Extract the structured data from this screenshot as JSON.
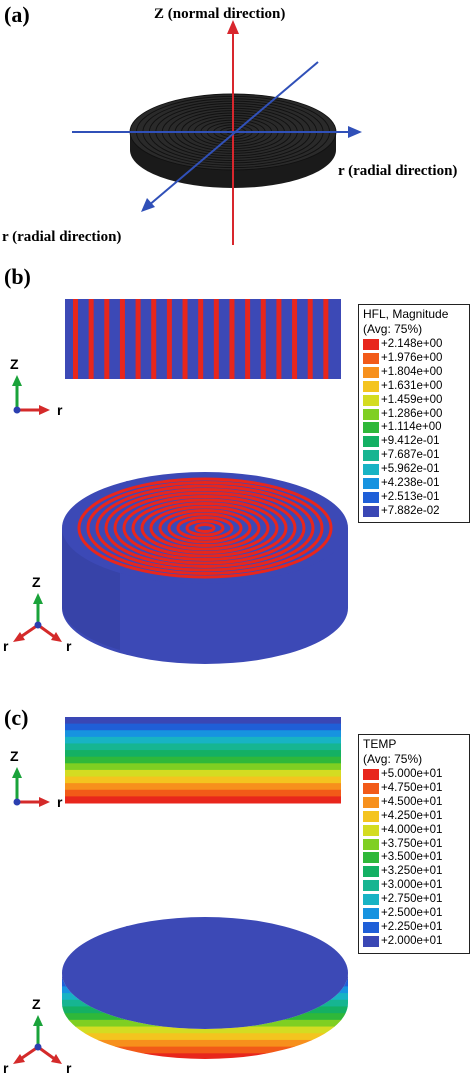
{
  "panel_a": {
    "label": "(a)",
    "axis_z": "Z (normal direction)",
    "axis_r_right": "r (radial direction)",
    "axis_r_left": "r (radial direction)"
  },
  "panel_b": {
    "label": "(b)",
    "legend_title": "HFL, Magnitude",
    "legend_subtitle": "(Avg: 75%)",
    "legend_values": [
      "+2.148e+00",
      "+1.976e+00",
      "+1.804e+00",
      "+1.631e+00",
      "+1.459e+00",
      "+1.286e+00",
      "+1.114e+00",
      "+9.412e-01",
      "+7.687e-01",
      "+5.962e-01",
      "+4.238e-01",
      "+2.513e-01",
      "+7.882e-02"
    ],
    "triad_2d": {
      "z": "Z",
      "r": "r"
    },
    "triad_3d": {
      "z": "Z",
      "r1": "r",
      "r2": "r"
    }
  },
  "panel_c": {
    "label": "(c)",
    "legend_title": "TEMP",
    "legend_subtitle": "(Avg: 75%)",
    "legend_values": [
      "+5.000e+01",
      "+4.750e+01",
      "+4.500e+01",
      "+4.250e+01",
      "+4.000e+01",
      "+3.750e+01",
      "+3.500e+01",
      "+3.250e+01",
      "+3.000e+01",
      "+2.750e+01",
      "+2.500e+01",
      "+2.250e+01",
      "+2.000e+01"
    ],
    "triad_2d": {
      "z": "Z",
      "r": "r"
    },
    "triad_3d": {
      "z": "Z",
      "r1": "r",
      "r2": "r"
    }
  },
  "colormap": [
    "#e8261c",
    "#f25a18",
    "#f7901c",
    "#f4c41f",
    "#d4dc22",
    "#7fcf22",
    "#2fb83a",
    "#14b063",
    "#16b591",
    "#18b3c4",
    "#1793e0",
    "#1f5fd8",
    "#3a47b5"
  ]
}
